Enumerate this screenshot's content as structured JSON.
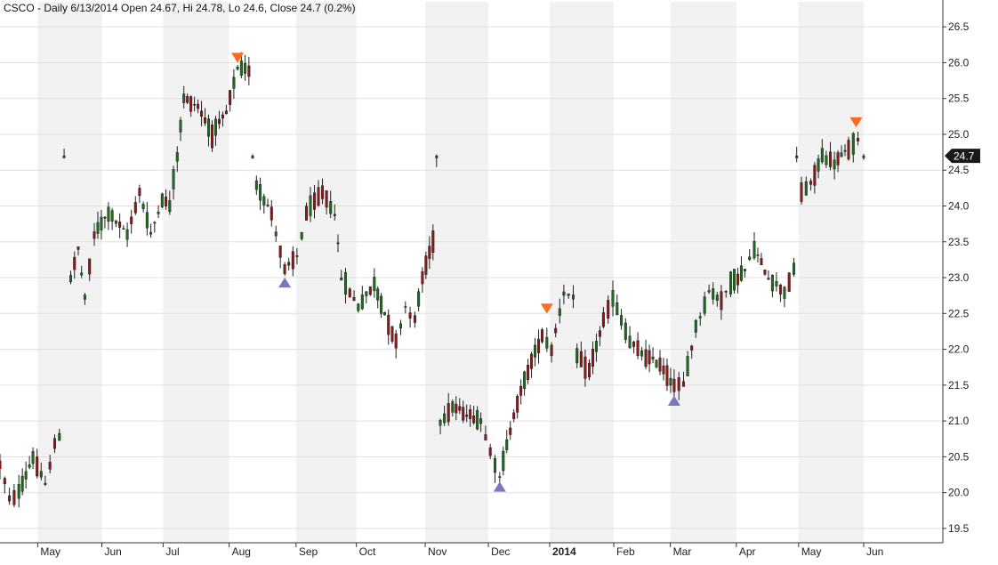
{
  "header": {
    "title": "CSCO - Daily 6/13/2014 Open 24.67, Hi 24.78, Lo 24.6, Close 24.7 (0.2%)"
  },
  "colors": {
    "up": "#1f6b1f",
    "down": "#8b1a1a",
    "wick": "#202020",
    "band": "#f2f2f2",
    "grid": "#e0e0e0",
    "sell_marker": "#ff6a21",
    "buy_marker": "#7777bb",
    "price_tag": "#1a1a1a"
  },
  "chart_data": {
    "type": "candlestick",
    "symbol": "CSCO",
    "period": "Daily",
    "ylim": [
      19.3,
      26.85
    ],
    "y_ticks": [
      "19.5",
      "20.0",
      "20.5",
      "21.0",
      "21.5",
      "22.0",
      "22.5",
      "23.0",
      "23.5",
      "24.0",
      "24.5",
      "25.0",
      "25.5",
      "26.0",
      "26.5"
    ],
    "grid": true,
    "month_labels": [
      {
        "label": "May",
        "t": 0.04
      },
      {
        "label": "Jun",
        "t": 0.108
      },
      {
        "label": "Jul",
        "t": 0.173
      },
      {
        "label": "Aug",
        "t": 0.243
      },
      {
        "label": "Sep",
        "t": 0.314
      },
      {
        "label": "Oct",
        "t": 0.378
      },
      {
        "label": "Nov",
        "t": 0.451
      },
      {
        "label": "Dec",
        "t": 0.518
      },
      {
        "label": "2014",
        "t": 0.583,
        "bold": true
      },
      {
        "label": "Feb",
        "t": 0.651
      },
      {
        "label": "Mar",
        "t": 0.711
      },
      {
        "label": "Apr",
        "t": 0.781
      },
      {
        "label": "May",
        "t": 0.847
      },
      {
        "label": "Jun",
        "t": 0.916
      }
    ],
    "last_price_label": "24.7",
    "last_price": 24.7,
    "anchors": [
      {
        "t": 0.0,
        "p": 20.4
      },
      {
        "t": 0.01,
        "p": 19.9
      },
      {
        "t": 0.02,
        "p": 20.0
      },
      {
        "t": 0.035,
        "p": 20.5
      },
      {
        "t": 0.048,
        "p": 20.1
      },
      {
        "t": 0.058,
        "p": 20.7
      },
      {
        "t": 0.068,
        "p": 20.8
      },
      {
        "t": 0.074,
        "p": null
      },
      {
        "t": 0.075,
        "p": 23.0
      },
      {
        "t": 0.083,
        "p": 23.4
      },
      {
        "t": 0.09,
        "p": 22.7
      },
      {
        "t": 0.1,
        "p": 23.6
      },
      {
        "t": 0.115,
        "p": 23.9
      },
      {
        "t": 0.135,
        "p": 23.6
      },
      {
        "t": 0.148,
        "p": 24.2
      },
      {
        "t": 0.16,
        "p": 23.6
      },
      {
        "t": 0.172,
        "p": 24.1
      },
      {
        "t": 0.18,
        "p": 24.0
      },
      {
        "t": 0.188,
        "p": 24.7
      },
      {
        "t": 0.195,
        "p": 25.5
      },
      {
        "t": 0.21,
        "p": 25.4
      },
      {
        "t": 0.225,
        "p": 25.0
      },
      {
        "t": 0.24,
        "p": 25.3
      },
      {
        "t": 0.252,
        "p": 25.9
      },
      {
        "t": 0.268,
        "p": 25.9
      },
      {
        "t": 0.269,
        "p": null
      },
      {
        "t": 0.272,
        "p": 24.3
      },
      {
        "t": 0.288,
        "p": 23.9
      },
      {
        "t": 0.302,
        "p": 23.1
      },
      {
        "t": 0.315,
        "p": 23.3
      },
      {
        "t": 0.325,
        "p": 23.9
      },
      {
        "t": 0.342,
        "p": 24.2
      },
      {
        "t": 0.355,
        "p": 23.9
      },
      {
        "t": 0.362,
        "p": 23.0
      },
      {
        "t": 0.38,
        "p": 22.6
      },
      {
        "t": 0.397,
        "p": 22.9
      },
      {
        "t": 0.408,
        "p": 22.5
      },
      {
        "t": 0.42,
        "p": 22.1
      },
      {
        "t": 0.43,
        "p": 22.6
      },
      {
        "t": 0.44,
        "p": 22.4
      },
      {
        "t": 0.448,
        "p": 23.0
      },
      {
        "t": 0.463,
        "p": 23.7
      },
      {
        "t": 0.464,
        "p": null
      },
      {
        "t": 0.467,
        "p": 21.0
      },
      {
        "t": 0.48,
        "p": 21.2
      },
      {
        "t": 0.495,
        "p": 21.1
      },
      {
        "t": 0.51,
        "p": 21.0
      },
      {
        "t": 0.52,
        "p": 20.6
      },
      {
        "t": 0.53,
        "p": 20.2
      },
      {
        "t": 0.545,
        "p": 21.1
      },
      {
        "t": 0.56,
        "p": 21.7
      },
      {
        "t": 0.575,
        "p": 22.2
      },
      {
        "t": 0.585,
        "p": 22.0
      },
      {
        "t": 0.598,
        "p": 22.8
      },
      {
        "t": 0.608,
        "p": 22.7
      },
      {
        "t": 0.612,
        "p": 21.9
      },
      {
        "t": 0.625,
        "p": 21.7
      },
      {
        "t": 0.64,
        "p": 22.4
      },
      {
        "t": 0.65,
        "p": 22.7
      },
      {
        "t": 0.668,
        "p": 22.1
      },
      {
        "t": 0.685,
        "p": 21.9
      },
      {
        "t": 0.7,
        "p": 21.8
      },
      {
        "t": 0.715,
        "p": 21.5
      },
      {
        "t": 0.725,
        "p": 21.5
      },
      {
        "t": 0.738,
        "p": 22.3
      },
      {
        "t": 0.752,
        "p": 22.8
      },
      {
        "t": 0.765,
        "p": 22.7
      },
      {
        "t": 0.775,
        "p": 22.9
      },
      {
        "t": 0.79,
        "p": 23.1
      },
      {
        "t": 0.8,
        "p": 23.4
      },
      {
        "t": 0.815,
        "p": 23.0
      },
      {
        "t": 0.832,
        "p": 22.8
      },
      {
        "t": 0.842,
        "p": 23.1
      },
      {
        "t": 0.845,
        "p": 22.75
      },
      {
        "t": 0.846,
        "p": null
      },
      {
        "t": 0.85,
        "p": 24.2
      },
      {
        "t": 0.86,
        "p": 24.3
      },
      {
        "t": 0.872,
        "p": 24.7
      },
      {
        "t": 0.885,
        "p": 24.6
      },
      {
        "t": 0.9,
        "p": 24.8
      },
      {
        "t": 0.91,
        "p": 24.9
      },
      {
        "t": 0.916,
        "p": 24.7
      }
    ],
    "markers": [
      {
        "kind": "sell",
        "t": 0.252,
        "price": 26.05
      },
      {
        "kind": "buy",
        "t": 0.302,
        "price": 22.95
      },
      {
        "kind": "buy",
        "t": 0.53,
        "price": 20.1
      },
      {
        "kind": "sell",
        "t": 0.58,
        "price": 22.55
      },
      {
        "kind": "buy",
        "t": 0.715,
        "price": 21.3
      },
      {
        "kind": "sell",
        "t": 0.908,
        "price": 25.15
      }
    ]
  }
}
